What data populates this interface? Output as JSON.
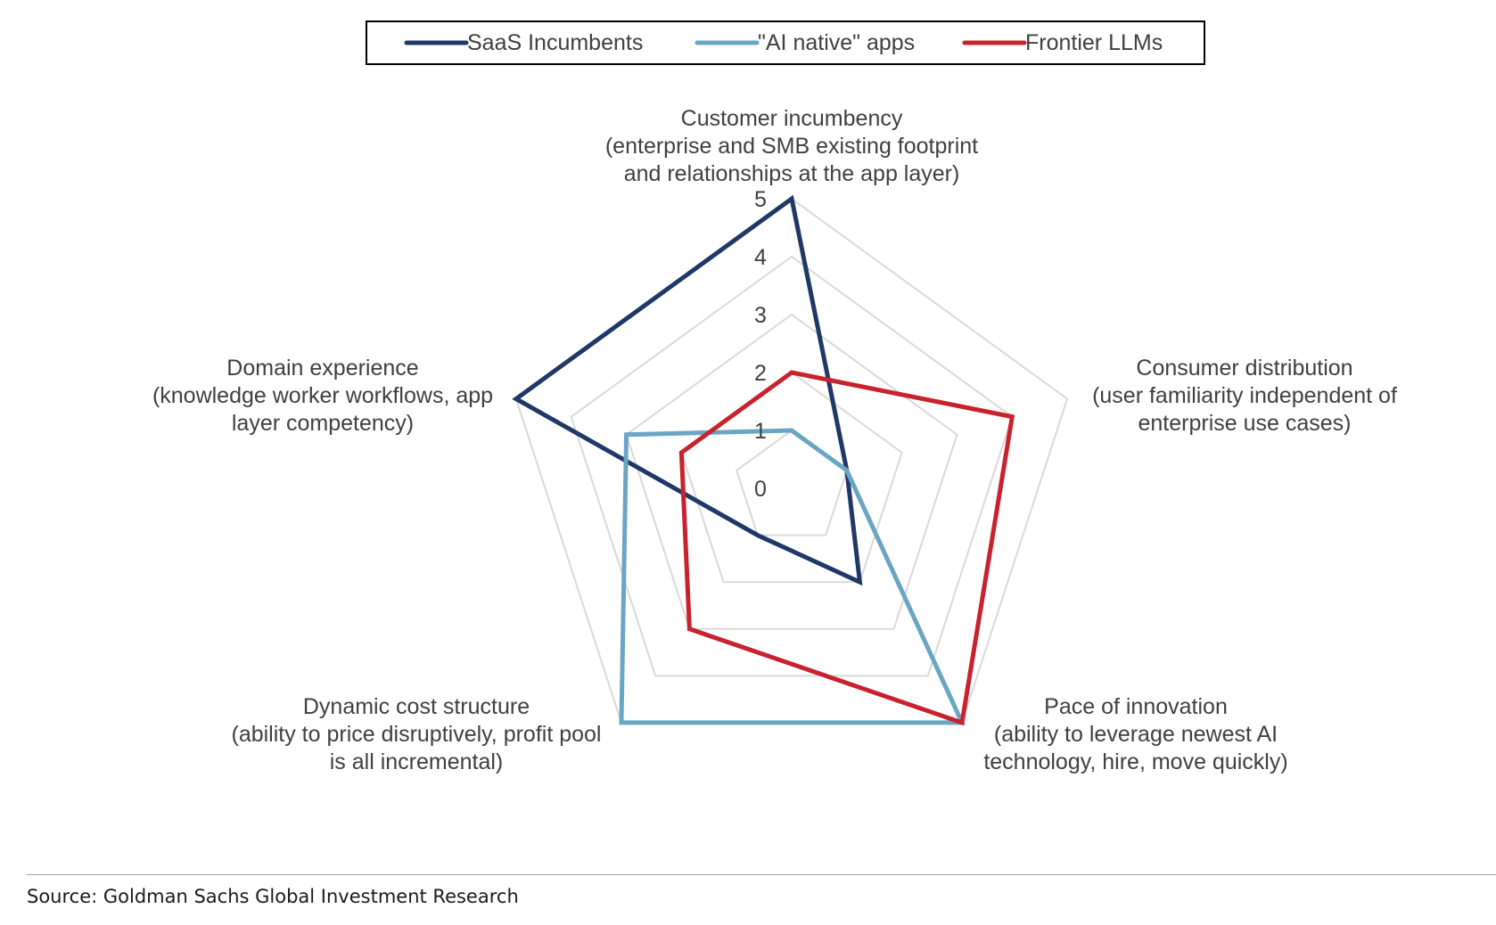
{
  "chart_data": {
    "type": "radar",
    "title": "",
    "axes": [
      {
        "id": "customer-incumbency",
        "label_lines": [
          "Customer incumbency",
          "(enterprise and SMB existing footprint",
          "and relationships at the app layer)"
        ]
      },
      {
        "id": "consumer-distribution",
        "label_lines": [
          "Consumer distribution",
          "(user familiarity independent of",
          "enterprise use cases)"
        ]
      },
      {
        "id": "pace-of-innovation",
        "label_lines": [
          "Pace of innovation",
          "(ability to leverage newest AI",
          "technology, hire, move quickly)"
        ]
      },
      {
        "id": "dynamic-cost-structure",
        "label_lines": [
          "Dynamic cost structure",
          "(ability to price disruptively, profit pool",
          "is all incremental)"
        ]
      },
      {
        "id": "domain-experience",
        "label_lines": [
          "Domain experience",
          "(knowledge worker workflows, app",
          "layer competency)"
        ]
      }
    ],
    "range": [
      0,
      5
    ],
    "ticks": [
      "0",
      "1",
      "2",
      "3",
      "4",
      "5"
    ],
    "series": [
      {
        "name": "SaaS Incumbents",
        "color": "#1f3868",
        "values": [
          5,
          1,
          2,
          1,
          5
        ]
      },
      {
        "name": "\"AI native\" apps",
        "color": "#6aa6c4",
        "values": [
          1,
          1,
          5,
          5,
          3
        ]
      },
      {
        "name": "Frontier LLMs",
        "color": "#c9222f",
        "values": [
          2,
          4,
          5,
          3,
          2
        ]
      }
    ],
    "legend_position": "top"
  },
  "source": "Source: Goldman Sachs Global Investment Research"
}
